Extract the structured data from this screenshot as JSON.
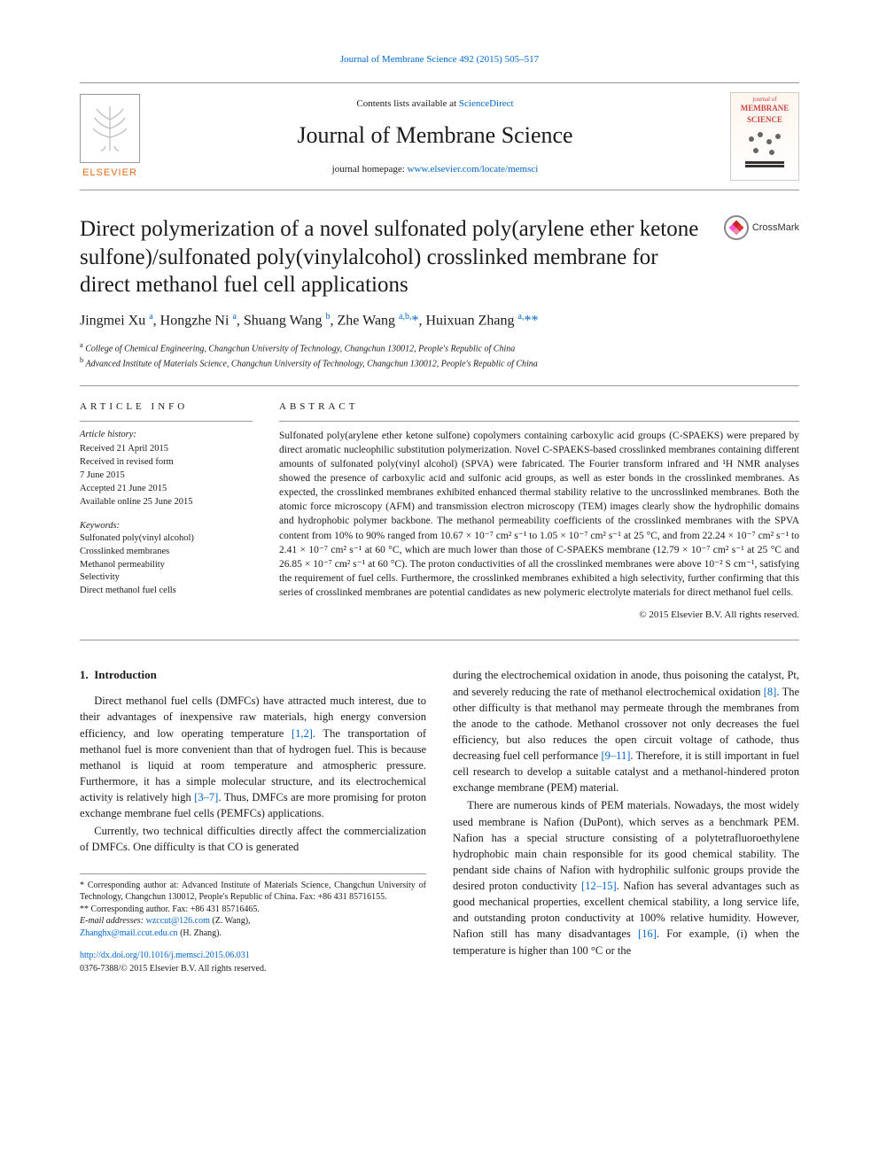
{
  "top_citation_link": "Journal of Membrane Science 492 (2015) 505–517",
  "header": {
    "contents_prefix": "Contents lists available at ",
    "contents_link": "ScienceDirect",
    "journal_name": "Journal of Membrane Science",
    "homepage_prefix": "journal homepage: ",
    "homepage_url": "www.elsevier.com/locate/memsci",
    "elsevier": "ELSEVIER",
    "cover_line1": "journal of",
    "cover_line2": "MEMBRANE",
    "cover_line3": "SCIENCE"
  },
  "title": "Direct polymerization of a novel sulfonated poly(arylene ether ketone sulfone)/sulfonated poly(vinylalcohol) crosslinked membrane for direct methanol fuel cell applications",
  "crossmark": "CrossMark",
  "authors_html": "Jingmei Xu <sup>a</sup>, Hongzhe Ni <sup>a</sup>, Shuang Wang <sup>b</sup>, Zhe Wang <sup>a,b,</sup><a href='#'>*</a>, Huixuan Zhang <sup>a,</sup><a href='#'>**</a>",
  "affiliations": {
    "a": "a College of Chemical Engineering, Changchun University of Technology, Changchun 130012, People's Republic of China",
    "b": "b Advanced Institute of Materials Science, Changchun University of Technology, Changchun 130012, People's Republic of China"
  },
  "article_info": {
    "label": "ARTICLE INFO",
    "history_label": "Article history:",
    "history": [
      "Received 21 April 2015",
      "Received in revised form",
      "7 June 2015",
      "Accepted 21 June 2015",
      "Available online 25 June 2015"
    ],
    "keywords_label": "Keywords:",
    "keywords": [
      "Sulfonated poly(vinyl alcohol)",
      "Crosslinked membranes",
      "Methanol permeability",
      "Selectivity",
      "Direct methanol fuel cells"
    ]
  },
  "abstract": {
    "label": "ABSTRACT",
    "text": "Sulfonated poly(arylene ether ketone sulfone) copolymers containing carboxylic acid groups (C-SPAEKS) were prepared by direct aromatic nucleophilic substitution polymerization. Novel C-SPAEKS-based crosslinked membranes containing different amounts of sulfonated poly(vinyl alcohol) (SPVA) were fabricated. The Fourier transform infrared and ¹H NMR analyses showed the presence of carboxylic acid and sulfonic acid groups, as well as ester bonds in the crosslinked membranes. As expected, the crosslinked membranes exhibited enhanced thermal stability relative to the uncrosslinked membranes. Both the atomic force microscopy (AFM) and transmission electron microscopy (TEM) images clearly show the hydrophilic domains and hydrophobic polymer backbone. The methanol permeability coefficients of the crosslinked membranes with the SPVA content from 10% to 90% ranged from 10.67 × 10⁻⁷ cm² s⁻¹ to 1.05 × 10⁻⁷ cm² s⁻¹ at 25 °C, and from 22.24 × 10⁻⁷ cm² s⁻¹ to 2.41 × 10⁻⁷ cm² s⁻¹ at 60 °C, which are much lower than those of C-SPAEKS membrane (12.79 × 10⁻⁷ cm² s⁻¹ at 25 °C and 26.85 × 10⁻⁷ cm² s⁻¹ at 60 °C). The proton conductivities of all the crosslinked membranes were above 10⁻² S cm⁻¹, satisfying the requirement of fuel cells. Furthermore, the crosslinked membranes exhibited a high selectivity, further confirming that this series of crosslinked membranes are potential candidates as new polymeric electrolyte materials for direct methanol fuel cells.",
    "copyright": "© 2015 Elsevier B.V. All rights reserved."
  },
  "body": {
    "section_number": "1.",
    "section_title": "Introduction",
    "left_p1": "Direct methanol fuel cells (DMFCs) have attracted much interest, due to their advantages of inexpensive raw materials, high energy conversion efficiency, and low operating temperature [1,2]. The transportation of methanol fuel is more convenient than that of hydrogen fuel. This is because methanol is liquid at room temperature and atmospheric pressure. Furthermore, it has a simple molecular structure, and its electrochemical activity is relatively high [3–7]. Thus, DMFCs are more promising for proton exchange membrane fuel cells (PEMFCs) applications.",
    "left_p2": "Currently, two technical difficulties directly affect the commercialization of DMFCs. One difficulty is that CO is generated",
    "right_p1": "during the electrochemical oxidation in anode, thus poisoning the catalyst, Pt, and severely reducing the rate of methanol electrochemical oxidation [8]. The other difficulty is that methanol may permeate through the membranes from the anode to the cathode. Methanol crossover not only decreases the fuel efficiency, but also reduces the open circuit voltage of cathode, thus decreasing fuel cell performance [9–11]. Therefore, it is still important in fuel cell research to develop a suitable catalyst and a methanol-hindered proton exchange membrane (PEM) material.",
    "right_p2": "There are numerous kinds of PEM materials. Nowadays, the most widely used membrane is Nafion (DuPont), which serves as a benchmark PEM. Nafion has a special structure consisting of a polytetrafluoroethylene hydrophobic main chain responsible for its good chemical stability. The pendant side chains of Nafion with hydrophilic sulfonic groups provide the desired proton conductivity [12–15]. Nafion has several advantages such as good mechanical properties, excellent chemical stability, a long service life, and outstanding proton conductivity at 100% relative humidity. However, Nafion still has many disadvantages [16]. For example, (i) when the temperature is higher than 100 °C or the"
  },
  "footnotes": {
    "star1": "* Corresponding author at: Advanced Institute of Materials Science, Changchun University of Technology, Changchun 130012, People's Republic of China. Fax: +86 431 85716155.",
    "star2": "** Corresponding author. Fax: +86 431 85716465.",
    "email_label": "E-mail addresses: ",
    "email1": "wzccut@126.com",
    "email1_who": " (Z. Wang),",
    "email2": "Zhanghx@mail.ccut.edu.cn",
    "email2_who": " (H. Zhang)."
  },
  "doi": {
    "url": "http://dx.doi.org/10.1016/j.memsci.2015.06.031",
    "issn_line": "0376-7388/© 2015 Elsevier B.V. All rights reserved."
  },
  "refs": {
    "r12": "[1,2]",
    "r37": "[3–7]",
    "r8": "[8]",
    "r911": "[9–11]",
    "r1215": "[12–15]",
    "r16": "[16]"
  }
}
